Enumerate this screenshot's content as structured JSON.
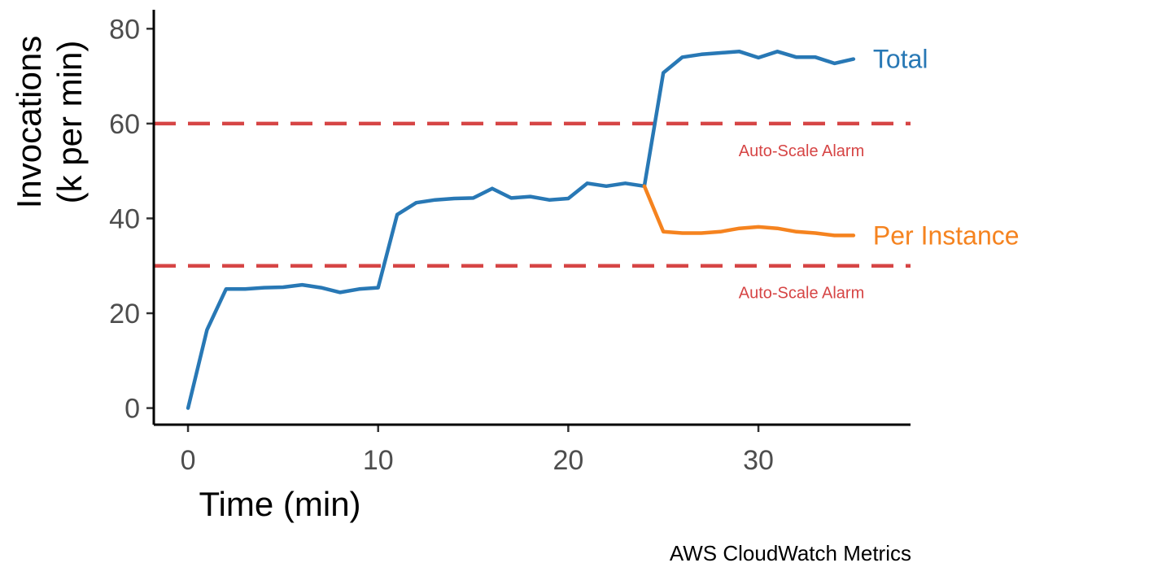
{
  "chart_data": {
    "type": "line",
    "xlabel": "Time (min)",
    "ylabel_lines": [
      "Invocations",
      "(k per min)"
    ],
    "caption": "AWS CloudWatch Metrics",
    "xlim": [
      -1.8,
      38
    ],
    "ylim": [
      -3.5,
      84
    ],
    "xticks": [
      0,
      10,
      20,
      30
    ],
    "yticks": [
      0,
      20,
      40,
      60,
      80
    ],
    "grid": false,
    "legend": "direct labels at line ends",
    "series": [
      {
        "name": "Total",
        "color": "#2878b5",
        "x": [
          0,
          1,
          2,
          3,
          4,
          5,
          6,
          7,
          8,
          9,
          10,
          11,
          12,
          13,
          14,
          15,
          16,
          17,
          18,
          19,
          20,
          21,
          22,
          23,
          24,
          25,
          26,
          27,
          28,
          29,
          30,
          31,
          32,
          33,
          34,
          35
        ],
        "values": [
          0,
          16.5,
          25.1,
          25.1,
          25.4,
          25.5,
          26.0,
          25.4,
          24.4,
          25.1,
          25.4,
          40.8,
          43.3,
          43.9,
          44.2,
          44.3,
          46.3,
          44.3,
          44.6,
          43.9,
          44.2,
          47.4,
          46.8,
          47.4,
          46.8,
          70.7,
          74.0,
          74.6,
          74.9,
          75.2,
          73.9,
          75.2,
          74.0,
          74.0,
          72.7,
          73.6
        ]
      },
      {
        "name": "Per Instance",
        "color": "#f5831f",
        "x": [
          24,
          25,
          26,
          27,
          28,
          29,
          30,
          31,
          32,
          33,
          34,
          35
        ],
        "values": [
          46.8,
          37.2,
          36.9,
          36.9,
          37.2,
          37.9,
          38.2,
          37.9,
          37.2,
          36.9,
          36.4,
          36.4
        ]
      }
    ],
    "reference_lines": [
      {
        "y": 60,
        "label": "Auto-Scale Alarm",
        "color": "#d64545"
      },
      {
        "y": 30,
        "label": "Auto-Scale Alarm",
        "color": "#d64545"
      }
    ]
  }
}
